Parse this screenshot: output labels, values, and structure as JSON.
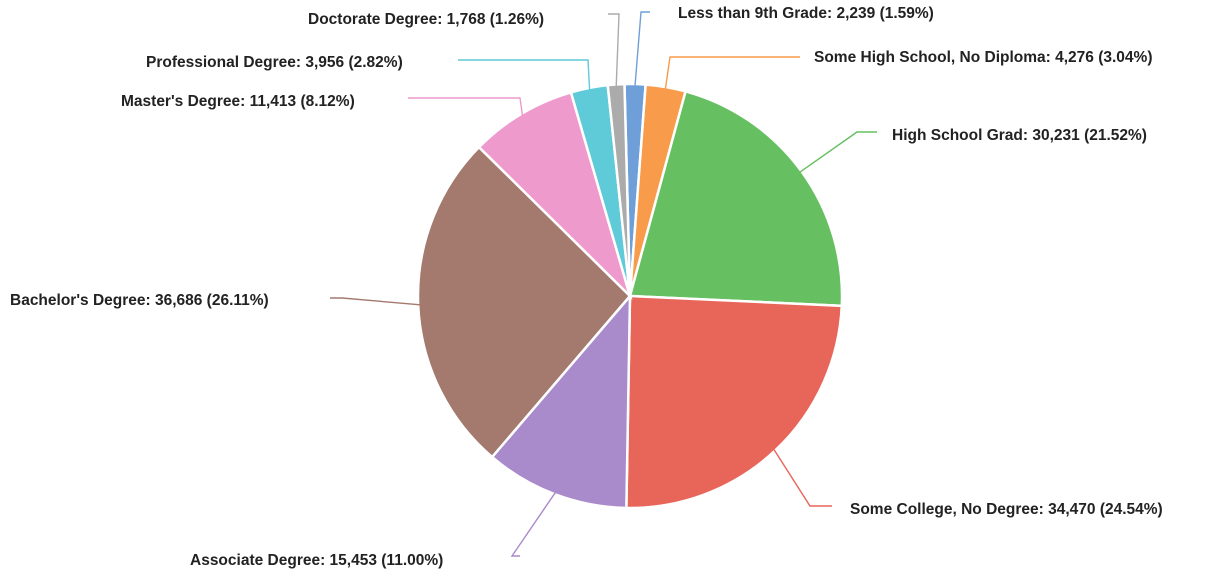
{
  "chart_data": {
    "type": "pie",
    "title": "",
    "start_angle_deg": -1.5,
    "direction": "clockwise",
    "slices": [
      {
        "label": "Less than 9th Grade: 2,239 (1.59%)",
        "category": "Less than 9th Grade",
        "value": 2239,
        "percent": 1.59,
        "color": "#6F9FD8"
      },
      {
        "label": "Some High School, No Diploma: 4,276 (3.04%)",
        "category": "Some High School, No Diploma",
        "value": 4276,
        "percent": 3.04,
        "color": "#F89C4C"
      },
      {
        "label": "High School Grad: 30,231 (21.52%)",
        "category": "High School Grad",
        "value": 30231,
        "percent": 21.52,
        "color": "#66BF60"
      },
      {
        "label": "Some College, No Degree: 34,470 (24.54%)",
        "category": "Some College, No Degree",
        "value": 34470,
        "percent": 24.54,
        "color": "#E8655A"
      },
      {
        "label": "Associate Degree: 15,453 (11.00%)",
        "category": "Associate Degree",
        "value": 15453,
        "percent": 11.0,
        "color": "#A98ACA"
      },
      {
        "label": "Bachelor's Degree: 36,686 (26.11%)",
        "category": "Bachelor's Degree",
        "value": 36686,
        "percent": 26.11,
        "color": "#A47A6E"
      },
      {
        "label": "Master's Degree: 11,413 (8.12%)",
        "category": "Master's Degree",
        "value": 11413,
        "percent": 8.12,
        "color": "#EE9ACD"
      },
      {
        "label": "Professional Degree: 3,956 (2.82%)",
        "category": "Professional Degree",
        "value": 3956,
        "percent": 2.82,
        "color": "#5FCAD8"
      },
      {
        "label": "Doctorate Degree: 1,768 (1.26%)",
        "category": "Doctorate Degree",
        "value": 1768,
        "percent": 1.26,
        "color": "#ABABAB"
      }
    ]
  }
}
